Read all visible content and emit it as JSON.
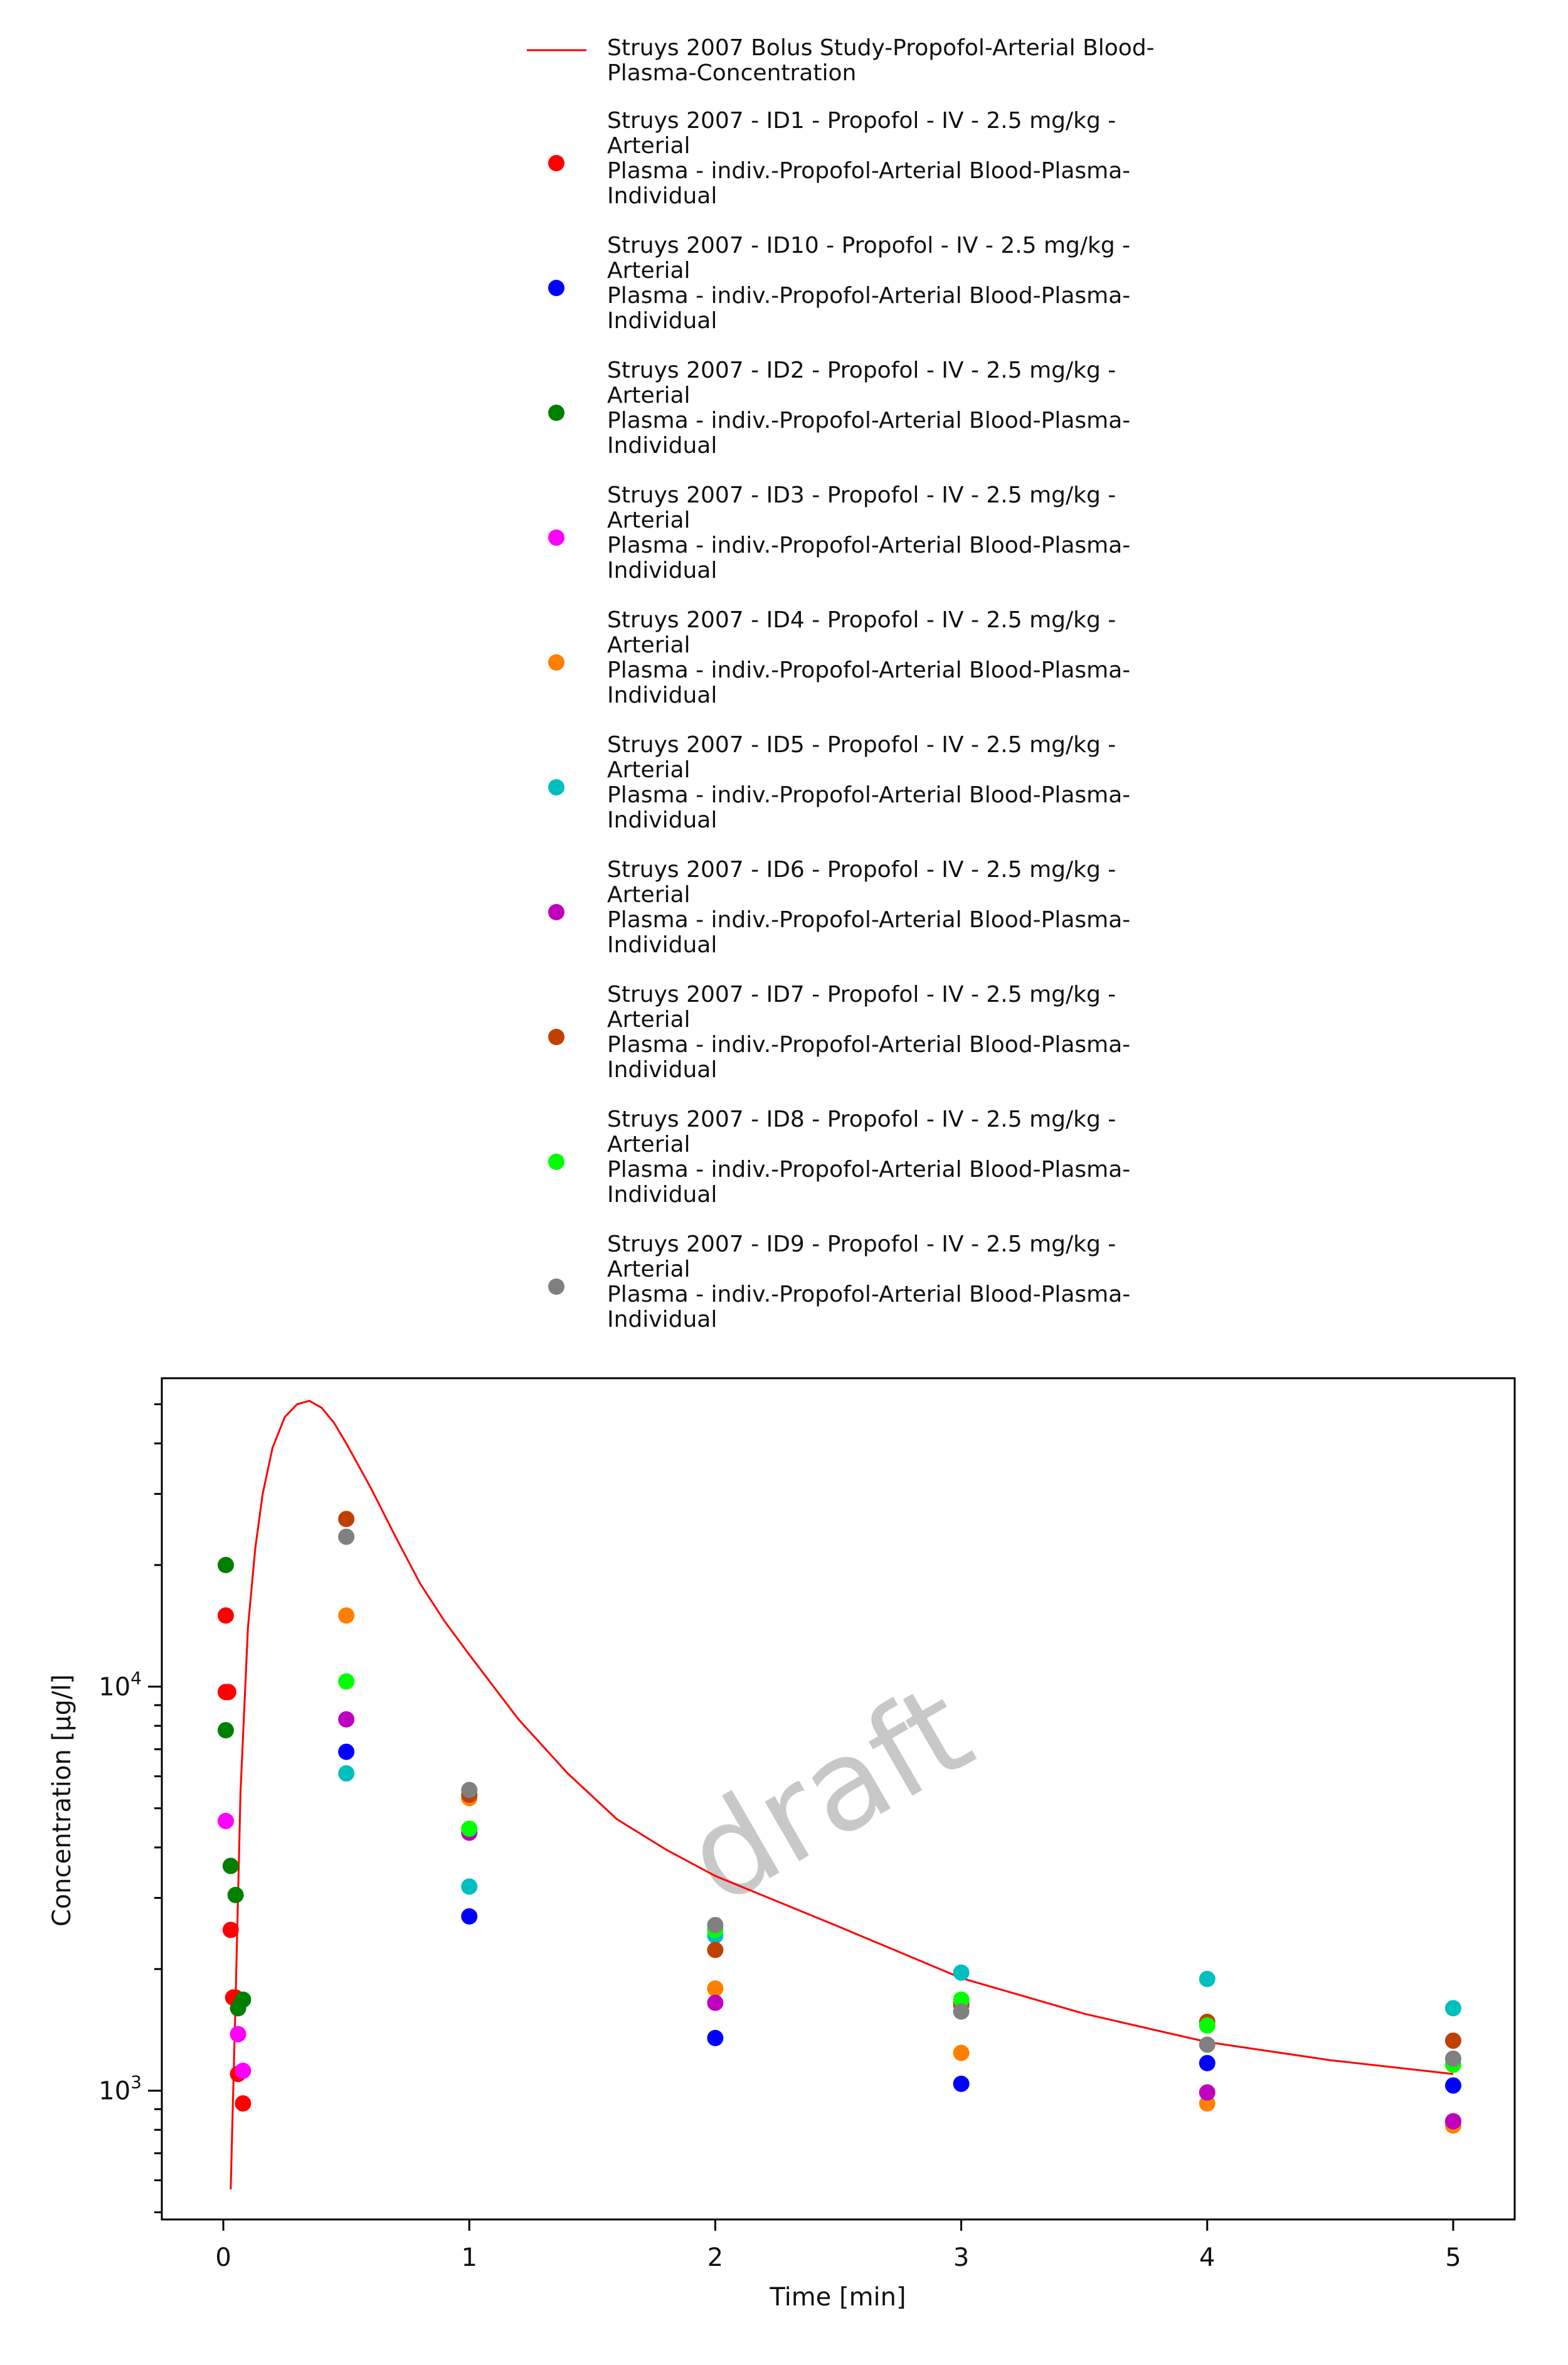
{
  "chart_data": {
    "type": "scatter",
    "xlabel": "Time [min]",
    "ylabel": "Concentration [µg/l]",
    "x_ticks": [
      0,
      1,
      2,
      3,
      4,
      5
    ],
    "y_ticks": [
      {
        "value": 1000,
        "base": "10",
        "exp": "3"
      },
      {
        "value": 10000,
        "base": "10",
        "exp": "4"
      }
    ],
    "xlim": [
      -0.25,
      5.25
    ],
    "ylim": [
      480,
      58000
    ],
    "y_scale": "log",
    "grid": false,
    "legend_position": "top",
    "watermark": "draft",
    "model_curve": {
      "name": "Struys 2007 Bolus Study-Propofol-Arterial Blood-Plasma-Concentration",
      "legend_lines": [
        "Struys 2007 Bolus Study-Propofol-Arterial Blood-",
        "Plasma-Concentration"
      ],
      "color": "#ff0000",
      "x": [
        0.03,
        0.05,
        0.07,
        0.1,
        0.13,
        0.16,
        0.2,
        0.25,
        0.3,
        0.35,
        0.4,
        0.45,
        0.5,
        0.6,
        0.7,
        0.8,
        0.9,
        1.0,
        1.2,
        1.4,
        1.6,
        1.8,
        2.0,
        2.5,
        3.0,
        3.5,
        4.0,
        4.5,
        5.0
      ],
      "y": [
        570,
        1700,
        5500,
        14000,
        22000,
        30000,
        39000,
        46500,
        50000,
        51000,
        49000,
        45000,
        40000,
        31000,
        23500,
        18000,
        14500,
        12000,
        8300,
        6100,
        4700,
        3950,
        3400,
        2550,
        1900,
        1550,
        1320,
        1190,
        1100
      ]
    },
    "series": [
      {
        "name": "Struys 2007 - ID1 - Propofol - IV - 2.5 mg/kg - Arterial Plasma - indiv.-Propofol-Arterial Blood-Plasma-Individual",
        "legend_lines": [
          "Struys 2007 - ID1 - Propofol - IV - 2.5 mg/kg -",
          "Arterial",
          "Plasma - indiv.-Propofol-Arterial Blood-Plasma-",
          "Individual"
        ],
        "color": "#ff0000",
        "points": [
          [
            0.01,
            15000
          ],
          [
            0.01,
            9700
          ],
          [
            0.02,
            9700
          ],
          [
            0.03,
            2500
          ],
          [
            0.04,
            1700
          ],
          [
            0.05,
            1700
          ],
          [
            0.06,
            1100
          ],
          [
            0.08,
            930
          ],
          [
            5.0,
            840
          ]
        ]
      },
      {
        "name": "Struys 2007 - ID10 - Propofol - IV - 2.5 mg/kg - Arterial Plasma - indiv.-Propofol-Arterial Blood-Plasma-Individual",
        "legend_lines": [
          "Struys 2007 - ID10 - Propofol - IV - 2.5 mg/kg -",
          "Arterial",
          "Plasma - indiv.-Propofol-Arterial Blood-Plasma-",
          "Individual"
        ],
        "color": "#0000ff",
        "points": [
          [
            0.5,
            6900
          ],
          [
            1.0,
            2700
          ],
          [
            2.0,
            1350
          ],
          [
            3.0,
            1040
          ],
          [
            4.0,
            1170
          ],
          [
            5.0,
            1030
          ]
        ]
      },
      {
        "name": "Struys 2007 - ID2 - Propofol - IV - 2.5 mg/kg - Arterial Plasma - indiv.-Propofol-Arterial Blood-Plasma-Individual",
        "legend_lines": [
          "Struys 2007 - ID2 - Propofol - IV - 2.5 mg/kg -",
          "Arterial",
          "Plasma - indiv.-Propofol-Arterial Blood-Plasma-",
          "Individual"
        ],
        "color": "#007f00",
        "points": [
          [
            0.01,
            20000
          ],
          [
            0.01,
            7800
          ],
          [
            0.03,
            3600
          ],
          [
            0.05,
            3050
          ],
          [
            0.06,
            1600
          ],
          [
            0.08,
            1680
          ]
        ]
      },
      {
        "name": "Struys 2007 - ID3 - Propofol - IV - 2.5 mg/kg - Arterial Plasma - indiv.-Propofol-Arterial Blood-Plasma-Individual",
        "legend_lines": [
          "Struys 2007 - ID3 - Propofol - IV - 2.5 mg/kg -",
          "Arterial",
          "Plasma - indiv.-Propofol-Arterial Blood-Plasma-",
          "Individual"
        ],
        "color": "#ff00ff",
        "points": [
          [
            0.01,
            4650
          ],
          [
            0.06,
            1380
          ],
          [
            0.08,
            1120
          ]
        ]
      },
      {
        "name": "Struys 2007 - ID4 - Propofol - IV - 2.5 mg/kg - Arterial Plasma - indiv.-Propofol-Arterial Blood-Plasma-Individual",
        "legend_lines": [
          "Struys 2007 - ID4 - Propofol - IV - 2.5 mg/kg -",
          "Arterial",
          "Plasma - indiv.-Propofol-Arterial Blood-Plasma-",
          "Individual"
        ],
        "color": "#ff8000",
        "points": [
          [
            0.5,
            15000
          ],
          [
            1.0,
            5300
          ],
          [
            2.0,
            1790
          ],
          [
            3.0,
            1240
          ],
          [
            4.0,
            930
          ],
          [
            5.0,
            820
          ]
        ]
      },
      {
        "name": "Struys 2007 - ID5 - Propofol - IV - 2.5 mg/kg - Arterial Plasma - indiv.-Propofol-Arterial Blood-Plasma-Individual",
        "legend_lines": [
          "Struys 2007 - ID5 - Propofol - IV - 2.5 mg/kg -",
          "Arterial",
          "Plasma - indiv.-Propofol-Arterial Blood-Plasma-",
          "Individual"
        ],
        "color": "#00bfbf",
        "points": [
          [
            0.5,
            6100
          ],
          [
            1.0,
            3200
          ],
          [
            2.0,
            2420
          ],
          [
            3.0,
            1960
          ],
          [
            4.0,
            1890
          ],
          [
            5.0,
            1600
          ]
        ]
      },
      {
        "name": "Struys 2007 - ID6 - Propofol - IV - 2.5 mg/kg - Arterial Plasma - indiv.-Propofol-Arterial Blood-Plasma-Individual",
        "legend_lines": [
          "Struys 2007 - ID6 - Propofol - IV - 2.5 mg/kg -",
          "Arterial",
          "Plasma - indiv.-Propofol-Arterial Blood-Plasma-",
          "Individual"
        ],
        "color": "#bf00bf",
        "points": [
          [
            0.5,
            8300
          ],
          [
            1.0,
            4350
          ],
          [
            2.0,
            1650
          ],
          [
            3.0,
            1650
          ],
          [
            4.0,
            990
          ],
          [
            5.0,
            840
          ]
        ]
      },
      {
        "name": "Struys 2007 - ID7 - Propofol - IV - 2.5 mg/kg - Arterial Plasma - indiv.-Propofol-Arterial Blood-Plasma-Individual",
        "legend_lines": [
          "Struys 2007 - ID7 - Propofol - IV - 2.5 mg/kg -",
          "Arterial",
          "Plasma - indiv.-Propofol-Arterial Blood-Plasma-",
          "Individual"
        ],
        "color": "#bf4000",
        "points": [
          [
            0.5,
            26000
          ],
          [
            1.0,
            5400
          ],
          [
            2.0,
            2230
          ],
          [
            3.0,
            1630
          ],
          [
            4.0,
            1480
          ],
          [
            5.0,
            1330
          ]
        ]
      },
      {
        "name": "Struys 2007 - ID8 - Propofol - IV - 2.5 mg/kg - Arterial Plasma - indiv.-Propofol-Arterial Blood-Plasma-Individual",
        "legend_lines": [
          "Struys 2007 - ID8 - Propofol - IV - 2.5 mg/kg -",
          "Arterial",
          "Plasma - indiv.-Propofol-Arterial Blood-Plasma-",
          "Individual"
        ],
        "color": "#00ff00",
        "points": [
          [
            0.5,
            10300
          ],
          [
            1.0,
            4450
          ],
          [
            2.0,
            2500
          ],
          [
            3.0,
            1680
          ],
          [
            4.0,
            1450
          ],
          [
            5.0,
            1160
          ]
        ]
      },
      {
        "name": "Struys 2007 - ID9 - Propofol - IV - 2.5 mg/kg - Arterial Plasma - indiv.-Propofol-Arterial Blood-Plasma-Individual",
        "legend_lines": [
          "Struys 2007 - ID9 - Propofol - IV - 2.5 mg/kg -",
          "Arterial",
          "Plasma - indiv.-Propofol-Arterial Blood-Plasma-",
          "Individual"
        ],
        "color": "#808080",
        "points": [
          [
            0.5,
            23500
          ],
          [
            1.0,
            5550
          ],
          [
            2.0,
            2570
          ],
          [
            3.0,
            1570
          ],
          [
            4.0,
            1300
          ],
          [
            5.0,
            1200
          ]
        ]
      }
    ]
  }
}
